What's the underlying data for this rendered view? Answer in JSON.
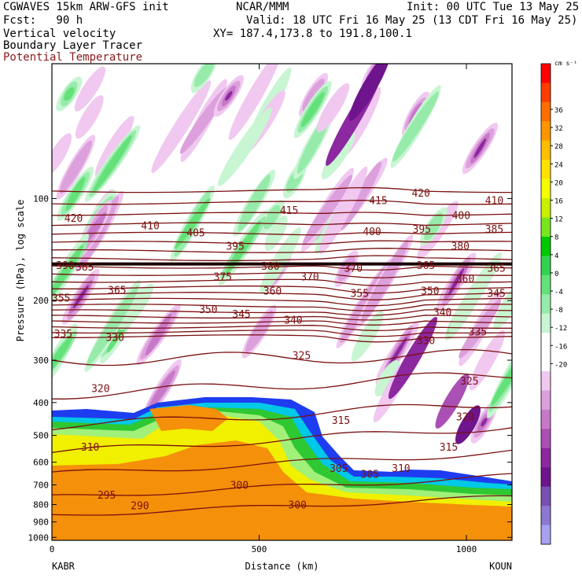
{
  "header": {
    "line1_left": "CGWAVES 15km ARW-GFS init",
    "line1_mid": "NCAR/MMM",
    "line1_right": "Init: 00 UTC Tue 13 May 25",
    "line2_left": "Fcst:   90 h",
    "line2_right": "Valid: 18 UTC Fri 16 May 25 (13 CDT Fri 16 May 25)",
    "line3_left": "Vertical velocity",
    "line3_right": "XY= 187.4,173.8 to 191.8,100.1",
    "line4_left": "Boundary Layer Tracer",
    "line5_left": "Potential Temperature"
  },
  "colors": {
    "theta_line": "#7a1010",
    "tracer_orange": "#f5900a",
    "tracer_yellow": "#f0f000",
    "tracer_lightgreen": "#a0f07a",
    "tracer_green": "#2ec832",
    "tracer_cyan": "#00c8e6",
    "tracer_blue": "#1e3cf0"
  },
  "chart_data": {
    "type": "heatmap",
    "title": "Vertical velocity / Boundary Layer Tracer / Potential Temperature",
    "xlabel": "Distance (km)",
    "ylabel": "Pressure (hPa), log scale",
    "xlim": [
      0,
      1110
    ],
    "ylim": [
      1020,
      40
    ],
    "y_scale": "log",
    "x_ticks": [
      "0",
      "500",
      "1000"
    ],
    "x_tick_values": [
      0,
      500,
      1000
    ],
    "x_endpoints": [
      "KABR",
      "KOUN"
    ],
    "y_ticks": [
      "100",
      "200",
      "300",
      "400",
      "500",
      "600",
      "700",
      "800",
      "900",
      "1000"
    ],
    "y_tick_values": [
      100,
      200,
      300,
      400,
      500,
      600,
      700,
      800,
      900,
      1000
    ],
    "colorbar": {
      "units": "cm s⁻¹",
      "labels": [
        "36",
        "32",
        "28",
        "24",
        "20",
        "16",
        "12",
        "8",
        "4",
        "0",
        "-4",
        "-8",
        "-12",
        "-16",
        "-20"
      ],
      "colors": [
        "#ff0000",
        "#ff3c00",
        "#ff6e00",
        "#ff9600",
        "#ffbe00",
        "#ffe100",
        "#f5ff00",
        "#c8f000",
        "#78e61e",
        "#00c800",
        "#32d250",
        "#64e178",
        "#96ebaa",
        "#c8f5d2",
        "#ffffff",
        "#ffffff",
        "#f0c8f0",
        "#dca0dc",
        "#c878c8",
        "#aa50b4",
        "#8c28a0",
        "#6e148c",
        "#7850b4",
        "#8c78d2",
        "#aaa0f0"
      ]
    },
    "theta_labels": [
      {
        "value": "420",
        "x": 30,
        "p": 114
      },
      {
        "value": "410",
        "x": 215,
        "p": 120
      },
      {
        "value": "405",
        "x": 325,
        "p": 126
      },
      {
        "value": "415",
        "x": 550,
        "p": 108
      },
      {
        "value": "415",
        "x": 765,
        "p": 101
      },
      {
        "value": "420",
        "x": 868,
        "p": 96
      },
      {
        "value": "410",
        "x": 1045,
        "p": 101
      },
      {
        "value": "400",
        "x": 750,
        "p": 125
      },
      {
        "value": "395",
        "x": 870,
        "p": 123
      },
      {
        "value": "400",
        "x": 965,
        "p": 112
      },
      {
        "value": "385",
        "x": 1045,
        "p": 123
      },
      {
        "value": "395",
        "x": 420,
        "p": 138
      },
      {
        "value": "380",
        "x": 963,
        "p": 138
      },
      {
        "value": "390",
        "x": 10,
        "p": 157
      },
      {
        "value": "385",
        "x": 57,
        "p": 159
      },
      {
        "value": "380",
        "x": 505,
        "p": 158
      },
      {
        "value": "370",
        "x": 705,
        "p": 160
      },
      {
        "value": "365",
        "x": 880,
        "p": 157
      },
      {
        "value": "365",
        "x": 1050,
        "p": 160
      },
      {
        "value": "375",
        "x": 390,
        "p": 170
      },
      {
        "value": "370",
        "x": 600,
        "p": 170
      },
      {
        "value": "360",
        "x": 975,
        "p": 172
      },
      {
        "value": "355",
        "x": 0,
        "p": 196
      },
      {
        "value": "365",
        "x": 135,
        "p": 186
      },
      {
        "value": "360",
        "x": 510,
        "p": 187
      },
      {
        "value": "355",
        "x": 720,
        "p": 190
      },
      {
        "value": "350",
        "x": 890,
        "p": 187
      },
      {
        "value": "345",
        "x": 1050,
        "p": 190
      },
      {
        "value": "350",
        "x": 355,
        "p": 212
      },
      {
        "value": "345",
        "x": 435,
        "p": 219
      },
      {
        "value": "340",
        "x": 560,
        "p": 228
      },
      {
        "value": "340",
        "x": 920,
        "p": 216
      },
      {
        "value": "335",
        "x": 5,
        "p": 250
      },
      {
        "value": "330",
        "x": 130,
        "p": 256
      },
      {
        "value": "335",
        "x": 1005,
        "p": 247
      },
      {
        "value": "330",
        "x": 880,
        "p": 262
      },
      {
        "value": "325",
        "x": 580,
        "p": 290
      },
      {
        "value": "325",
        "x": 985,
        "p": 345
      },
      {
        "value": "320",
        "x": 95,
        "p": 363
      },
      {
        "value": "320",
        "x": 975,
        "p": 440
      },
      {
        "value": "315",
        "x": 675,
        "p": 450
      },
      {
        "value": "315",
        "x": 935,
        "p": 540
      },
      {
        "value": "310",
        "x": 70,
        "p": 540
      },
      {
        "value": "310",
        "x": 820,
        "p": 623
      },
      {
        "value": "305",
        "x": 670,
        "p": 623
      },
      {
        "value": "305",
        "x": 745,
        "p": 650
      },
      {
        "value": "300",
        "x": 430,
        "p": 700
      },
      {
        "value": "300",
        "x": 570,
        "p": 800
      },
      {
        "value": "295",
        "x": 110,
        "p": 748
      },
      {
        "value": "290",
        "x": 190,
        "p": 805
      }
    ]
  }
}
